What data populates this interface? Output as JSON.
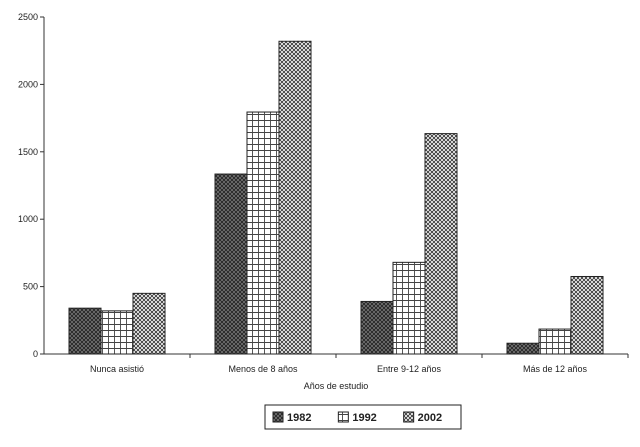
{
  "chart_data": {
    "type": "bar",
    "title": "",
    "xlabel": "Años de estudio",
    "ylabel": "",
    "ylim": [
      0,
      2500
    ],
    "yticks": [
      0,
      500,
      1000,
      1500,
      2000,
      2500
    ],
    "grid": false,
    "legend_position": "bottom",
    "categories": [
      "Nunca asistió",
      "Menos de 8 años",
      "Entre 9-12 años",
      "Más de 12 años"
    ],
    "series": [
      {
        "name": "1982",
        "values": [
          340,
          1335,
          390,
          80
        ],
        "pattern": "dark-cross"
      },
      {
        "name": "1992",
        "values": [
          320,
          1795,
          680,
          185
        ],
        "pattern": "grid"
      },
      {
        "name": "2002",
        "values": [
          450,
          2320,
          1635,
          575
        ],
        "pattern": "checker"
      }
    ]
  }
}
